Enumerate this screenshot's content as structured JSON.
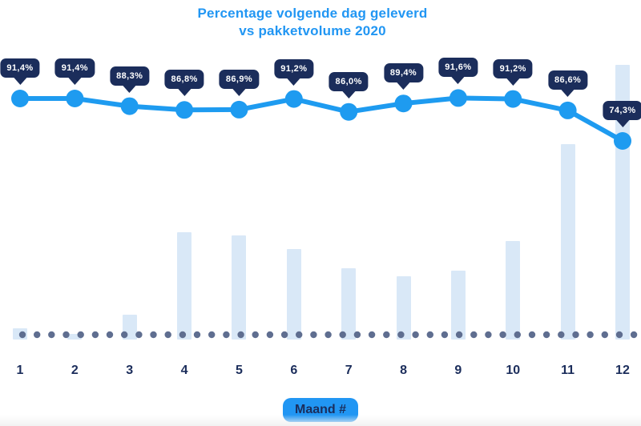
{
  "title": {
    "line1": "Percentage volgende dag geleverd",
    "line2": "vs pakketvolume 2020"
  },
  "x_axis": {
    "badge_label": "Maand #"
  },
  "colors": {
    "accent_blue": "#2196F3",
    "line_blue": "#1E9BF0",
    "tooltip_navy": "#1B2D5B",
    "bar_fill": "#D9E8F7",
    "baseline_dot": "#5F6E90",
    "background": "#FFFFFF"
  },
  "chart_data": {
    "type": "line+bar",
    "title": "Percentage volgende dag geleverd vs pakketvolume 2020",
    "xlabel": "Maand #",
    "categories": [
      "1",
      "2",
      "3",
      "4",
      "5",
      "6",
      "7",
      "8",
      "9",
      "10",
      "11",
      "12"
    ],
    "series": [
      {
        "name": "Percentage volgende dag geleverd",
        "type": "line",
        "unit": "%",
        "values": [
          91.4,
          91.4,
          88.3,
          86.8,
          86.9,
          91.2,
          86.0,
          89.4,
          91.6,
          91.2,
          86.6,
          74.3
        ],
        "labels": [
          "91,4%",
          "91,4%",
          "88,3%",
          "86,8%",
          "86,9%",
          "91,2%",
          "86,0%",
          "89,4%",
          "91,6%",
          "91,2%",
          "86,6%",
          "74,3%"
        ],
        "color": "#1E9BF0",
        "point_label_style": "dark-rounded-tooltip"
      },
      {
        "name": "Pakketvolume 2020",
        "type": "bar",
        "values_relative_pct_of_max": [
          4,
          2,
          9,
          39,
          38,
          33,
          26,
          23,
          25,
          36,
          71,
          100
        ],
        "color": "#D9E8F7"
      }
    ],
    "y_axis_visible": false,
    "legend": "none",
    "baseline": {
      "style": "dotted",
      "color": "#5F6E90"
    }
  }
}
